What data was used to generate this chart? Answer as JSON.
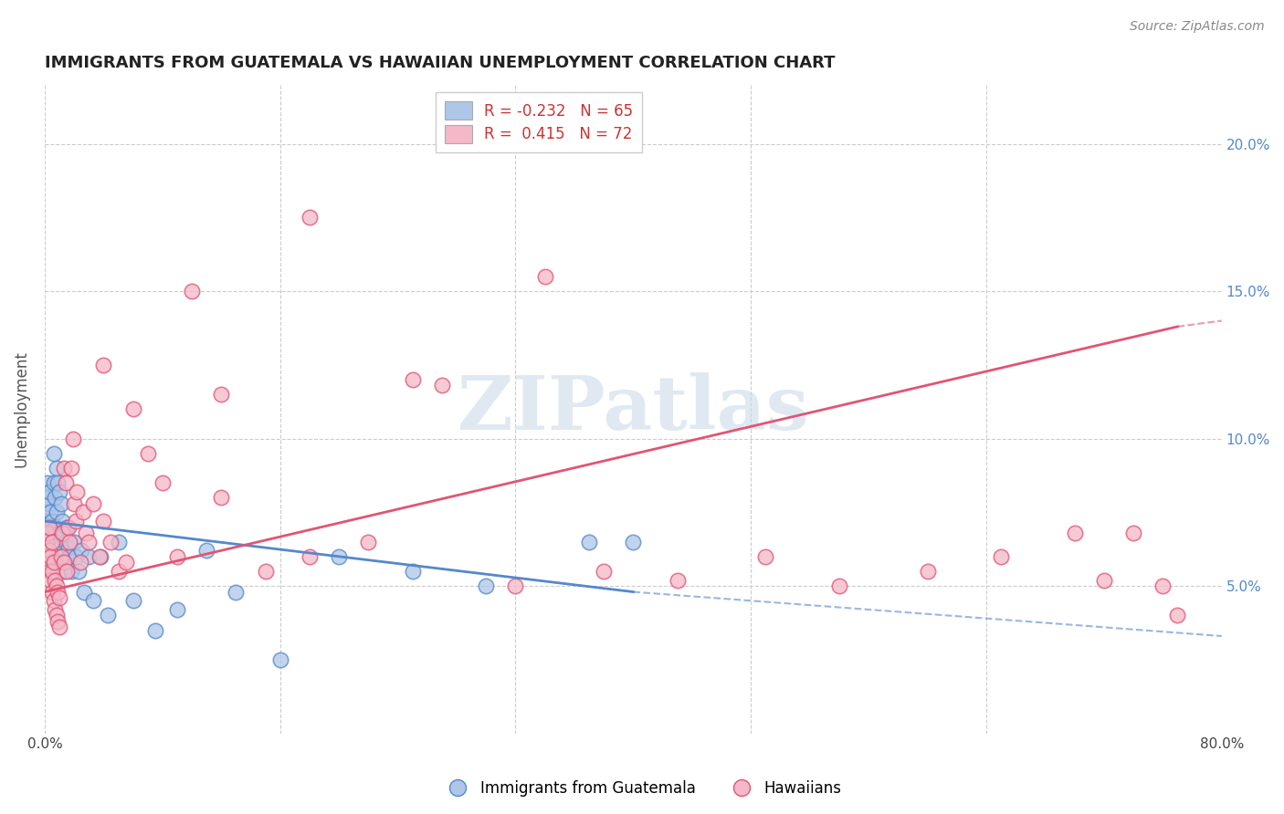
{
  "title": "IMMIGRANTS FROM GUATEMALA VS HAWAIIAN UNEMPLOYMENT CORRELATION CHART",
  "source": "Source: ZipAtlas.com",
  "ylabel": "Unemployment",
  "xlim": [
    0,
    0.8
  ],
  "ylim": [
    0,
    0.22
  ],
  "yticks": [
    0.05,
    0.1,
    0.15,
    0.2
  ],
  "ytick_labels": [
    "5.0%",
    "10.0%",
    "15.0%",
    "20.0%"
  ],
  "xtick_vals": [
    0.0,
    0.16,
    0.32,
    0.48,
    0.64,
    0.8
  ],
  "xtick_labels": [
    "0.0%",
    "",
    "",
    "",
    "",
    "80.0%"
  ],
  "blue_R": -0.232,
  "blue_N": 65,
  "pink_R": 0.415,
  "pink_N": 72,
  "blue_color": "#aec6e8",
  "pink_color": "#f5b8c8",
  "blue_edge_color": "#5588cc",
  "pink_edge_color": "#e05575",
  "blue_line_color": "#5588cc",
  "pink_line_color": "#e05575",
  "watermark_color": "#c8d8e8",
  "legend_label_blue": "Immigrants from Guatemala",
  "legend_label_pink": "Hawaiians",
  "blue_line_start_x": 0.0,
  "blue_line_start_y": 0.072,
  "blue_line_end_x": 0.4,
  "blue_line_end_y": 0.048,
  "blue_line_dash_end_x": 0.8,
  "blue_line_dash_end_y": 0.033,
  "pink_line_start_x": 0.0,
  "pink_line_start_y": 0.048,
  "pink_line_end_x": 0.77,
  "pink_line_end_y": 0.138,
  "pink_line_dash_end_x": 0.8,
  "pink_line_dash_end_y": 0.14,
  "blue_scatter_x": [
    0.001,
    0.001,
    0.001,
    0.002,
    0.002,
    0.002,
    0.002,
    0.003,
    0.003,
    0.003,
    0.003,
    0.003,
    0.004,
    0.004,
    0.004,
    0.004,
    0.005,
    0.005,
    0.005,
    0.005,
    0.006,
    0.006,
    0.006,
    0.007,
    0.007,
    0.007,
    0.008,
    0.008,
    0.008,
    0.009,
    0.009,
    0.01,
    0.01,
    0.011,
    0.011,
    0.012,
    0.012,
    0.013,
    0.013,
    0.014,
    0.015,
    0.016,
    0.017,
    0.018,
    0.02,
    0.021,
    0.023,
    0.025,
    0.027,
    0.03,
    0.033,
    0.038,
    0.043,
    0.05,
    0.06,
    0.075,
    0.09,
    0.11,
    0.13,
    0.16,
    0.2,
    0.25,
    0.3,
    0.37,
    0.4
  ],
  "blue_scatter_y": [
    0.07,
    0.075,
    0.068,
    0.08,
    0.085,
    0.072,
    0.065,
    0.078,
    0.082,
    0.07,
    0.065,
    0.06,
    0.075,
    0.068,
    0.062,
    0.058,
    0.072,
    0.065,
    0.06,
    0.055,
    0.095,
    0.085,
    0.068,
    0.08,
    0.07,
    0.058,
    0.09,
    0.075,
    0.062,
    0.085,
    0.065,
    0.082,
    0.068,
    0.078,
    0.06,
    0.072,
    0.058,
    0.068,
    0.055,
    0.065,
    0.07,
    0.063,
    0.06,
    0.055,
    0.065,
    0.06,
    0.055,
    0.062,
    0.048,
    0.06,
    0.045,
    0.06,
    0.04,
    0.065,
    0.045,
    0.035,
    0.042,
    0.062,
    0.048,
    0.025,
    0.06,
    0.055,
    0.05,
    0.065,
    0.065
  ],
  "pink_scatter_x": [
    0.001,
    0.001,
    0.002,
    0.002,
    0.003,
    0.003,
    0.003,
    0.004,
    0.004,
    0.005,
    0.005,
    0.005,
    0.006,
    0.006,
    0.007,
    0.007,
    0.008,
    0.008,
    0.009,
    0.009,
    0.01,
    0.01,
    0.011,
    0.012,
    0.013,
    0.013,
    0.014,
    0.015,
    0.016,
    0.017,
    0.018,
    0.019,
    0.02,
    0.021,
    0.022,
    0.024,
    0.026,
    0.028,
    0.03,
    0.033,
    0.037,
    0.04,
    0.045,
    0.05,
    0.055,
    0.06,
    0.07,
    0.08,
    0.09,
    0.1,
    0.12,
    0.15,
    0.18,
    0.22,
    0.27,
    0.32,
    0.38,
    0.43,
    0.49,
    0.54,
    0.6,
    0.65,
    0.7,
    0.72,
    0.74,
    0.76,
    0.77,
    0.04,
    0.12,
    0.18,
    0.25,
    0.34
  ],
  "pink_scatter_y": [
    0.06,
    0.065,
    0.058,
    0.068,
    0.055,
    0.062,
    0.07,
    0.052,
    0.06,
    0.048,
    0.055,
    0.065,
    0.045,
    0.058,
    0.042,
    0.052,
    0.04,
    0.05,
    0.038,
    0.048,
    0.036,
    0.046,
    0.06,
    0.068,
    0.058,
    0.09,
    0.085,
    0.055,
    0.07,
    0.065,
    0.09,
    0.1,
    0.078,
    0.072,
    0.082,
    0.058,
    0.075,
    0.068,
    0.065,
    0.078,
    0.06,
    0.072,
    0.065,
    0.055,
    0.058,
    0.11,
    0.095,
    0.085,
    0.06,
    0.15,
    0.08,
    0.055,
    0.06,
    0.065,
    0.118,
    0.05,
    0.055,
    0.052,
    0.06,
    0.05,
    0.055,
    0.06,
    0.068,
    0.052,
    0.068,
    0.05,
    0.04,
    0.125,
    0.115,
    0.175,
    0.12,
    0.155
  ]
}
